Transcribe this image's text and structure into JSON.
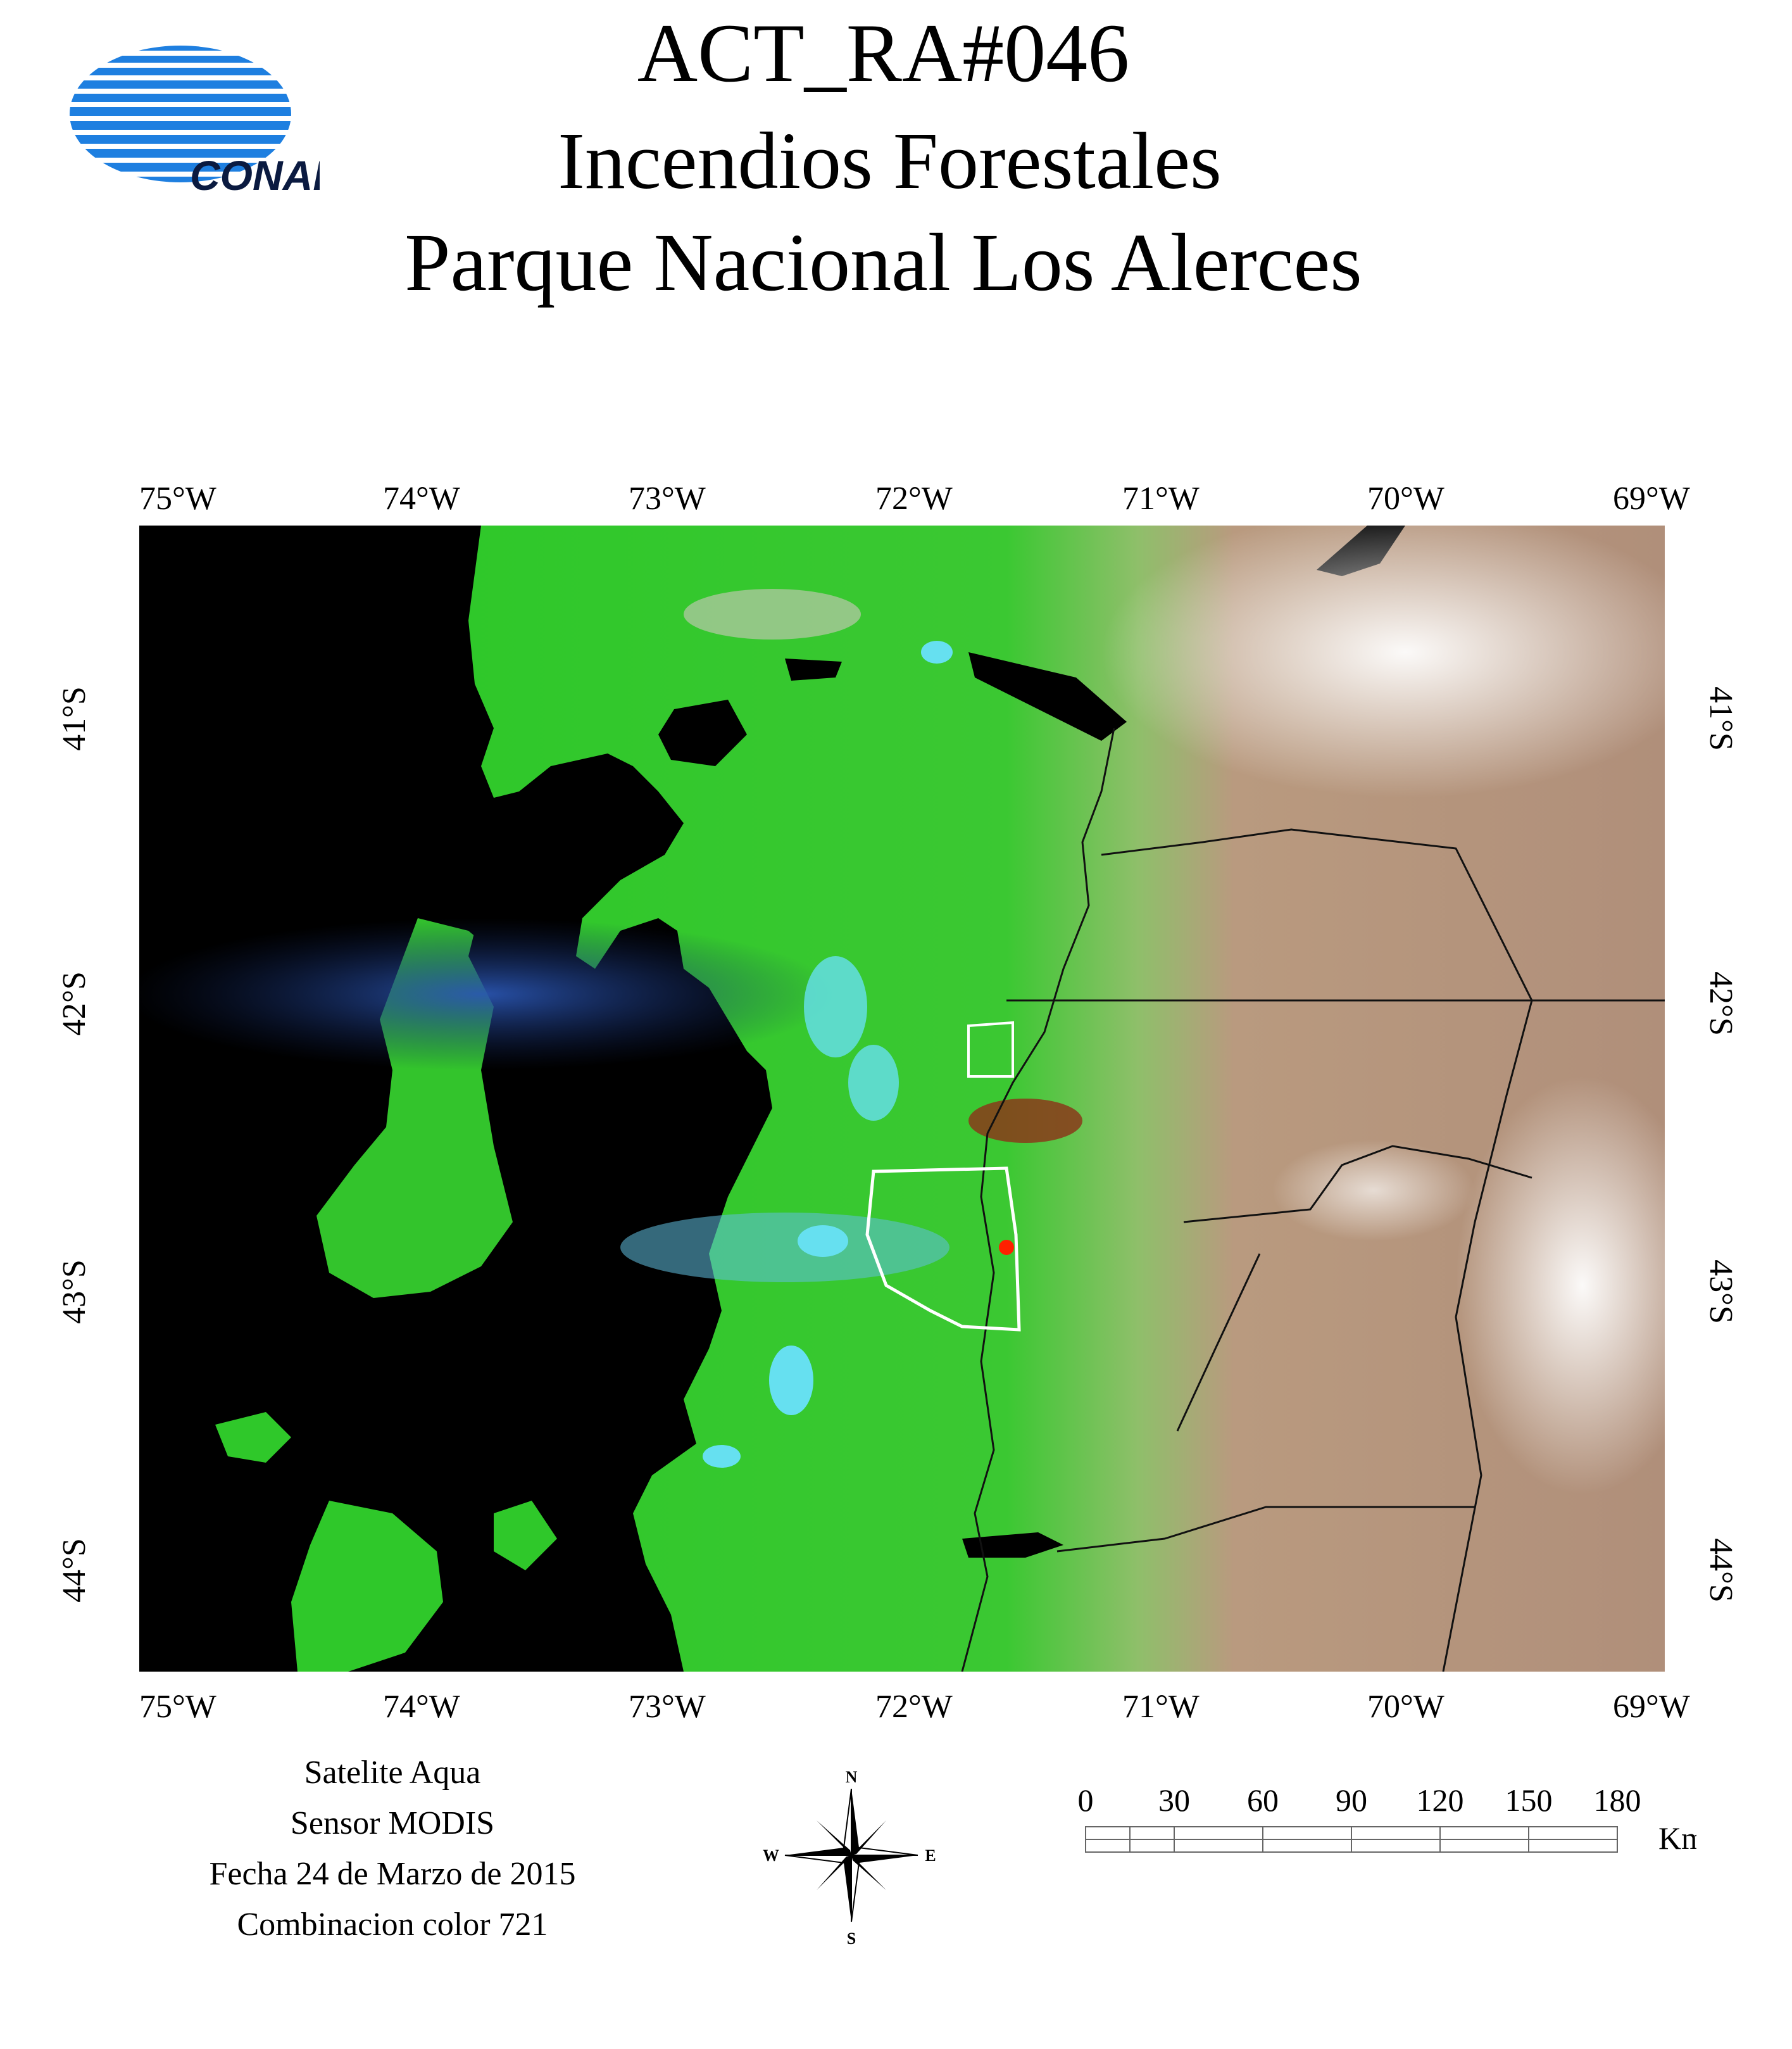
{
  "title": {
    "line1": "ACT_RA#046",
    "line2": "Incendios Forestales",
    "line3": "Parque Nacional Los Alerces"
  },
  "logo": {
    "text": "CONAE",
    "icon": "conae-logo-icon",
    "color": "#1e7fe0"
  },
  "map": {
    "longitude_ticks": [
      "75°W",
      "74°W",
      "73°W",
      "72°W",
      "71°W",
      "70°W",
      "69°W"
    ],
    "latitude_ticks": [
      "41°S",
      "42°S",
      "43°S",
      "44°S"
    ],
    "colors": {
      "ocean": "#000000",
      "vegetation": "#2fc82a",
      "steppe": "#b8937a",
      "smoke": "#2a4fa0",
      "burn_scar": "#8a3a1a",
      "fire": "#ff2000",
      "snow": "#66e0f0",
      "park_boundary": "#ffffff",
      "borders": "#111111"
    }
  },
  "info": {
    "satellite": "Satelite Aqua",
    "sensor": "Sensor MODIS",
    "date": "Fecha 24 de Marzo de 2015",
    "combination": "Combinacion color 721"
  },
  "compass": {
    "icon": "compass-rose-icon",
    "n": "N",
    "s": "S",
    "e": "E",
    "w": "W"
  },
  "scale_bar": {
    "ticks": [
      "0",
      "30",
      "60",
      "90",
      "120",
      "150",
      "180"
    ],
    "unit": "Km"
  }
}
